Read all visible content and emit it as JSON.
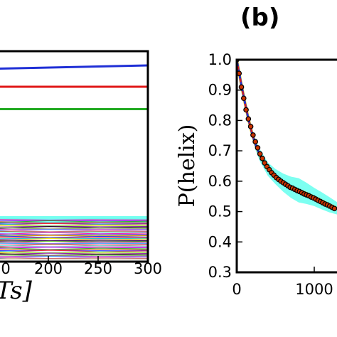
{
  "chart_data": [
    {
      "type": "line",
      "panel": "left (cropped)",
      "x_ticks": [
        "0",
        "200",
        "250",
        "300"
      ],
      "xlim": [
        150,
        300
      ],
      "xlabel": "Ts]",
      "series": [
        {
          "color": "#1f2fd6",
          "x": [
            150,
            300
          ],
          "y": [
            0.905,
            0.92
          ]
        },
        {
          "color": "#e01818",
          "x": [
            150,
            300
          ],
          "y": [
            0.82,
            0.82
          ]
        },
        {
          "color": "#22aa22",
          "x": [
            150,
            300
          ],
          "y": [
            0.715,
            0.715
          ]
        }
      ],
      "band_colors": [
        "#66ffee",
        "#ff00aa",
        "#aa22ff",
        "#22aa22",
        "#ff8800",
        "#2222ff",
        "#ff2222",
        "#00cccc",
        "#ffee00",
        "#8800aa",
        "#000000",
        "#66cc33",
        "#cc33cc",
        "#3399ff",
        "#ff6699",
        "#996633"
      ]
    },
    {
      "type": "line",
      "panel": "(b)",
      "panel_label": "(b)",
      "ylabel": "P(helix)",
      "ylim": [
        0.3,
        1.0
      ],
      "y_ticks": [
        "1.0",
        "0.9",
        "0.8",
        "0.7",
        "0.6",
        "0.5",
        "0.4",
        "0.3"
      ],
      "x_ticks": [
        "0",
        "1000"
      ],
      "xlim": [
        0,
        1500
      ],
      "series": [
        {
          "kind": "band",
          "color": "#66ffee",
          "x": [
            0,
            50,
            100,
            150,
            200,
            250,
            300,
            400,
            500,
            600,
            700,
            800,
            900,
            1000,
            1100,
            1200,
            1300
          ],
          "y": [
            1.0,
            0.93,
            0.865,
            0.805,
            0.755,
            0.715,
            0.685,
            0.64,
            0.615,
            0.595,
            0.58,
            0.57,
            0.56,
            0.548,
            0.535,
            0.522,
            0.51
          ],
          "halfwidth": [
            0.0,
            0.006,
            0.01,
            0.012,
            0.015,
            0.018,
            0.02,
            0.022,
            0.025,
            0.03,
            0.035,
            0.04,
            0.035,
            0.03,
            0.028,
            0.025,
            0.02
          ]
        },
        {
          "kind": "line",
          "color": "#ffcc00",
          "x": [
            0,
            50,
            100,
            150,
            200,
            250,
            300,
            400,
            500,
            600,
            700,
            800,
            900,
            1000,
            1100,
            1200,
            1300
          ],
          "y": [
            1.0,
            0.93,
            0.865,
            0.805,
            0.755,
            0.715,
            0.685,
            0.64,
            0.615,
            0.595,
            0.58,
            0.57,
            0.56,
            0.548,
            0.535,
            0.522,
            0.51
          ]
        },
        {
          "kind": "line",
          "color": "#1f2fd6",
          "x": [
            0,
            50,
            100,
            150,
            200,
            250,
            300,
            400,
            500,
            600,
            700,
            800,
            900,
            1000,
            1100,
            1200,
            1300
          ],
          "y": [
            1.0,
            0.93,
            0.865,
            0.805,
            0.755,
            0.715,
            0.685,
            0.64,
            0.615,
            0.595,
            0.58,
            0.57,
            0.56,
            0.548,
            0.535,
            0.522,
            0.51
          ]
        },
        {
          "kind": "dashed",
          "color": "#e01818",
          "x": [
            0,
            50,
            100,
            150,
            200,
            250,
            300,
            400,
            500,
            600,
            700,
            800,
            900,
            1000,
            1100,
            1200,
            1300
          ],
          "y": [
            1.0,
            0.93,
            0.865,
            0.805,
            0.755,
            0.715,
            0.685,
            0.64,
            0.615,
            0.595,
            0.58,
            0.57,
            0.56,
            0.548,
            0.535,
            0.522,
            0.51
          ]
        },
        {
          "kind": "markers",
          "color": "#cc3300",
          "x": [
            0,
            30,
            60,
            90,
            120,
            150,
            180,
            210,
            240,
            270,
            300,
            330,
            360,
            390,
            420,
            450,
            480,
            510,
            540,
            570,
            600,
            630,
            660,
            690,
            720,
            750,
            780,
            810,
            840,
            870,
            900,
            930,
            960,
            990,
            1020,
            1050,
            1080,
            1110,
            1140,
            1170,
            1200,
            1230,
            1260
          ],
          "y": [
            1.0,
            0.955,
            0.91,
            0.873,
            0.835,
            0.805,
            0.78,
            0.752,
            0.73,
            0.71,
            0.69,
            0.675,
            0.66,
            0.648,
            0.638,
            0.628,
            0.62,
            0.612,
            0.606,
            0.6,
            0.595,
            0.59,
            0.585,
            0.58,
            0.577,
            0.573,
            0.569,
            0.566,
            0.562,
            0.558,
            0.555,
            0.552,
            0.548,
            0.545,
            0.541,
            0.537,
            0.533,
            0.529,
            0.525,
            0.522,
            0.518,
            0.514,
            0.51
          ]
        }
      ]
    }
  ]
}
